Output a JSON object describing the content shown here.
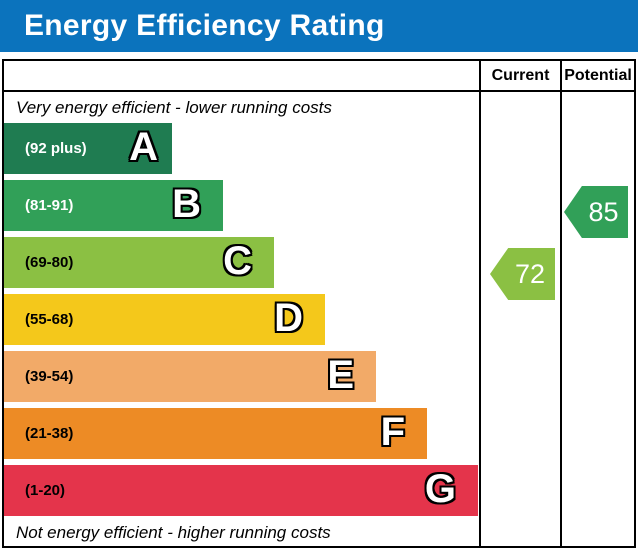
{
  "title": "Energy Efficiency Rating",
  "header": {
    "current": "Current",
    "potential": "Potential"
  },
  "captions": {
    "top": "Very energy efficient - lower running costs",
    "bottom": "Not energy efficient - higher running costs"
  },
  "bands": [
    {
      "letter": "A",
      "range": "(92 plus)",
      "color": "#1f7c51",
      "label_color": "#ffffff"
    },
    {
      "letter": "B",
      "range": "(81-91)",
      "color": "#31a058",
      "label_color": "#ffffff"
    },
    {
      "letter": "C",
      "range": "(69-80)",
      "color": "#8bc043",
      "label_color": "#000000"
    },
    {
      "letter": "D",
      "range": "(55-68)",
      "color": "#f4c81b",
      "label_color": "#000000"
    },
    {
      "letter": "E",
      "range": "(39-54)",
      "color": "#f2aa68",
      "label_color": "#000000"
    },
    {
      "letter": "F",
      "range": "(21-38)",
      "color": "#ed8b25",
      "label_color": "#000000"
    },
    {
      "letter": "G",
      "range": "(1-20)",
      "color": "#e4344b",
      "label_color": "#000000"
    }
  ],
  "ratings": {
    "current": {
      "value": "72",
      "band": "C",
      "color": "#8bc043"
    },
    "potential": {
      "value": "85",
      "band": "B",
      "color": "#31a058"
    }
  },
  "colors": {
    "title_bg": "#0b73bd",
    "title_text": "#ffffff",
    "border": "#000000"
  },
  "chart_data": {
    "type": "bar",
    "orientation": "horizontal",
    "title": "Energy Efficiency Rating",
    "categories": [
      "A",
      "B",
      "C",
      "D",
      "E",
      "F",
      "G"
    ],
    "band_score_ranges": [
      "92 plus",
      "81-91",
      "69-80",
      "55-68",
      "39-54",
      "21-38",
      "1-20"
    ],
    "band_colors": [
      "#1f7c51",
      "#31a058",
      "#8bc043",
      "#f4c81b",
      "#f2aa68",
      "#ed8b25",
      "#e4344b"
    ],
    "bar_relative_lengths": [
      0.27,
      0.35,
      0.43,
      0.51,
      0.59,
      0.67,
      0.75
    ],
    "columns": [
      "Current",
      "Potential"
    ],
    "markers": [
      {
        "column": "Current",
        "value": 72,
        "band": "C"
      },
      {
        "column": "Potential",
        "value": 85,
        "band": "B"
      }
    ],
    "annotations": [
      "Very energy efficient - lower running costs",
      "Not energy efficient - higher running costs"
    ],
    "legend": "none",
    "grid": "off"
  }
}
